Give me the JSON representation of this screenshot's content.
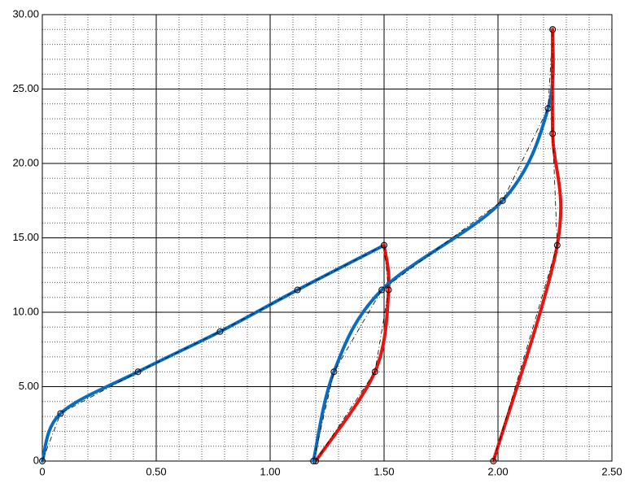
{
  "chart_data": {
    "type": "line",
    "xlim": [
      0,
      2.5
    ],
    "xticks": [
      0,
      {
        "value": 0.5,
        "label": "0.50"
      },
      {
        "value": 1,
        "label": "1.00"
      },
      {
        "value": 1.5,
        "label": "1.50"
      },
      {
        "value": 2,
        "label": "2.00"
      },
      {
        "value": 2.5,
        "label": "2.50"
      }
    ],
    "ylim": [
      0,
      30
    ],
    "yticks": [
      0,
      {
        "value": 5,
        "label": "5.00"
      },
      {
        "value": 10,
        "label": "10.00"
      },
      {
        "value": 15,
        "label": "15.00"
      },
      {
        "value": 20,
        "label": "20.00"
      },
      {
        "value": 25,
        "label": "25.00"
      },
      {
        "value": 30,
        "label": "30.00"
      }
    ],
    "grid": true,
    "minor_divisions": 5,
    "series": [
      {
        "color": "#0a6cbf",
        "x": [
          0,
          0.08,
          0.42,
          0.78,
          1.12,
          1.5
        ],
        "values": [
          0,
          3.2,
          6.0,
          8.7,
          11.5,
          14.5
        ]
      },
      {
        "color": "#e8140f",
        "x": [
          1.5,
          1.52,
          1.46,
          1.2
        ],
        "values": [
          14.5,
          11.5,
          6.0,
          0
        ]
      },
      {
        "color": "#0a6cbf",
        "x": [
          1.19,
          1.28,
          1.49,
          2.02,
          2.22,
          2.24
        ],
        "values": [
          0,
          6.0,
          11.5,
          17.5,
          23.7,
          29
        ]
      },
      {
        "color": "#e8140f",
        "x": [
          1.98,
          2.26,
          2.24,
          2.24
        ],
        "values": [
          0,
          14.5,
          22.0,
          29
        ]
      }
    ]
  }
}
